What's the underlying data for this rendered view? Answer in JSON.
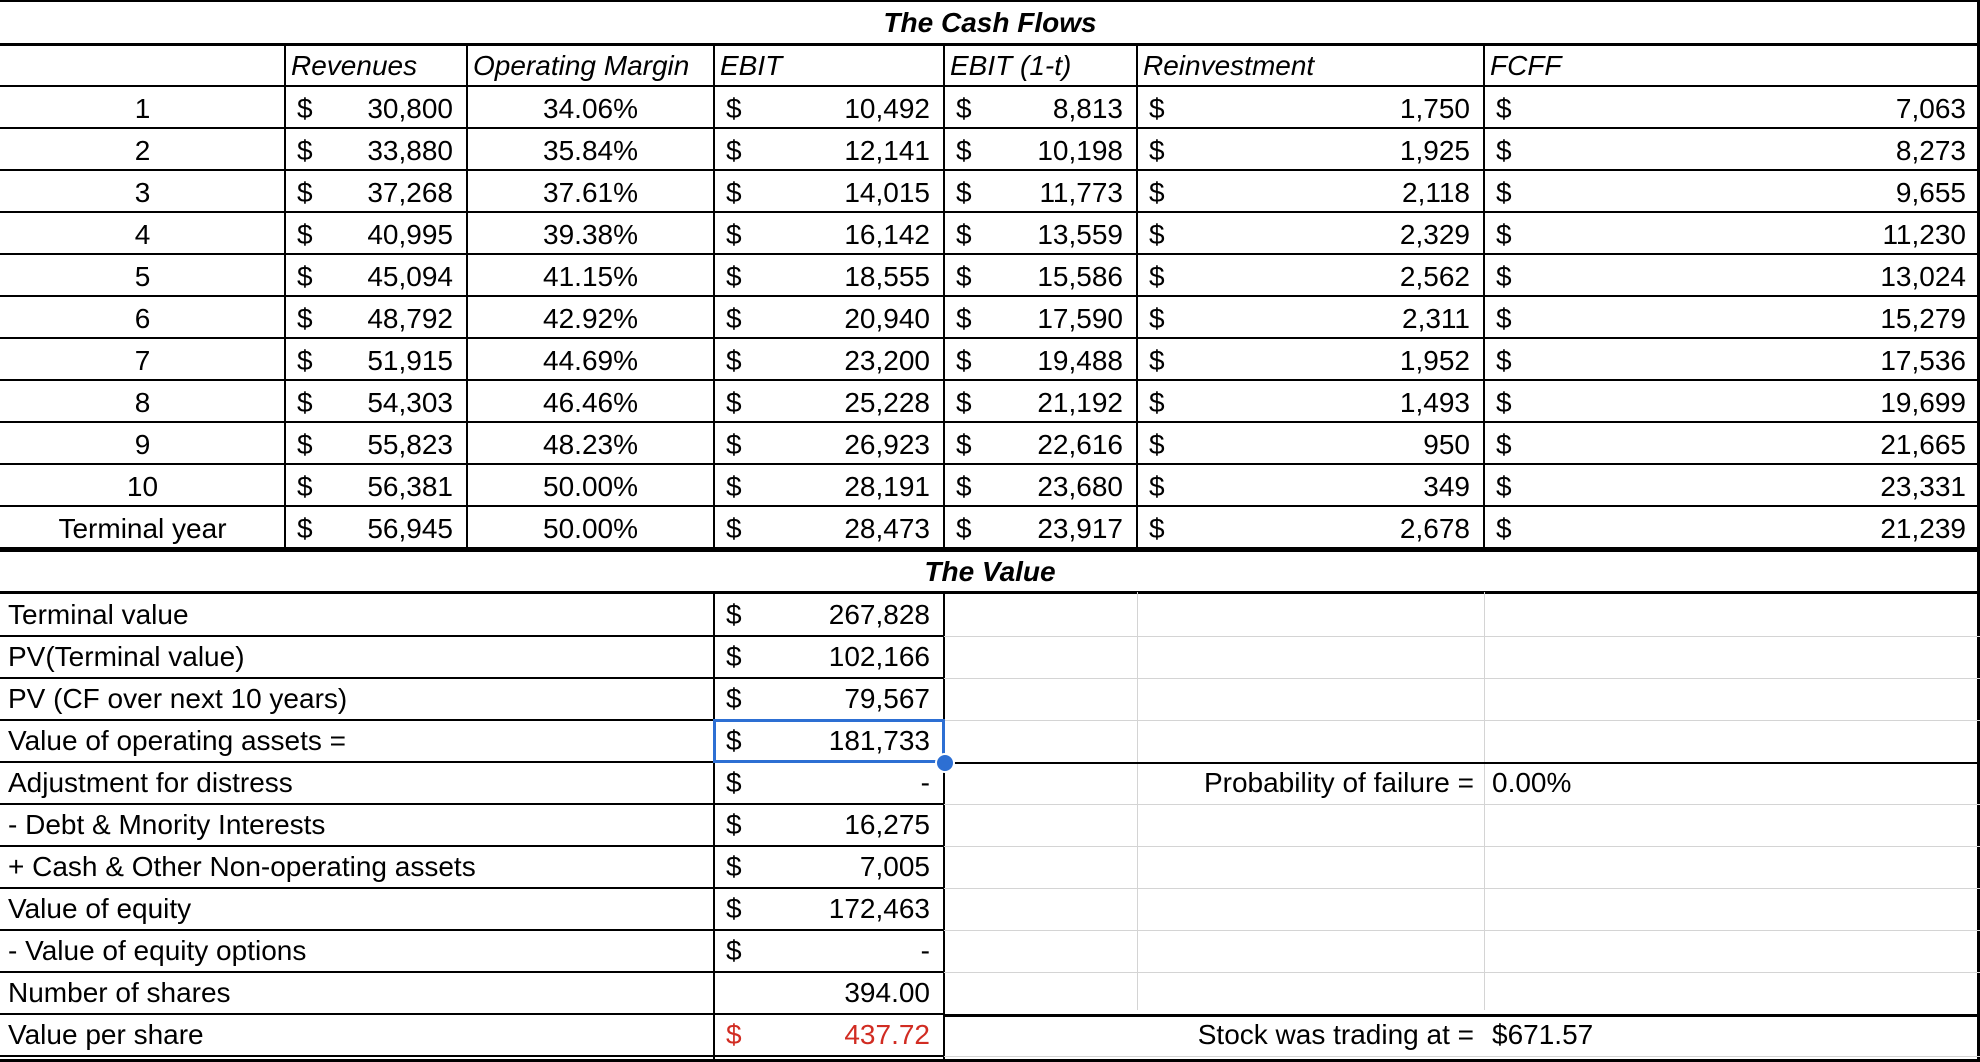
{
  "sections": {
    "cash_flows_title": "The Cash Flows",
    "value_title": "The Value"
  },
  "cash_flows": {
    "headers": [
      "Revenues",
      "Operating Margin",
      "EBIT",
      "EBIT (1-t)",
      "Reinvestment",
      "FCFF"
    ],
    "currency_symbol": "$",
    "rows": [
      {
        "year": "1",
        "revenues": "30,800",
        "margin": "34.06%",
        "ebit": "10,492",
        "ebit_after_tax": "8,813",
        "reinvestment": "1,750",
        "fcff": "7,063"
      },
      {
        "year": "2",
        "revenues": "33,880",
        "margin": "35.84%",
        "ebit": "12,141",
        "ebit_after_tax": "10,198",
        "reinvestment": "1,925",
        "fcff": "8,273"
      },
      {
        "year": "3",
        "revenues": "37,268",
        "margin": "37.61%",
        "ebit": "14,015",
        "ebit_after_tax": "11,773",
        "reinvestment": "2,118",
        "fcff": "9,655"
      },
      {
        "year": "4",
        "revenues": "40,995",
        "margin": "39.38%",
        "ebit": "16,142",
        "ebit_after_tax": "13,559",
        "reinvestment": "2,329",
        "fcff": "11,230"
      },
      {
        "year": "5",
        "revenues": "45,094",
        "margin": "41.15%",
        "ebit": "18,555",
        "ebit_after_tax": "15,586",
        "reinvestment": "2,562",
        "fcff": "13,024"
      },
      {
        "year": "6",
        "revenues": "48,792",
        "margin": "42.92%",
        "ebit": "20,940",
        "ebit_after_tax": "17,590",
        "reinvestment": "2,311",
        "fcff": "15,279"
      },
      {
        "year": "7",
        "revenues": "51,915",
        "margin": "44.69%",
        "ebit": "23,200",
        "ebit_after_tax": "19,488",
        "reinvestment": "1,952",
        "fcff": "17,536"
      },
      {
        "year": "8",
        "revenues": "54,303",
        "margin": "46.46%",
        "ebit": "25,228",
        "ebit_after_tax": "21,192",
        "reinvestment": "1,493",
        "fcff": "19,699"
      },
      {
        "year": "9",
        "revenues": "55,823",
        "margin": "48.23%",
        "ebit": "26,923",
        "ebit_after_tax": "22,616",
        "reinvestment": "950",
        "fcff": "21,665"
      },
      {
        "year": "10",
        "revenues": "56,381",
        "margin": "50.00%",
        "ebit": "28,191",
        "ebit_after_tax": "23,680",
        "reinvestment": "349",
        "fcff": "23,331"
      },
      {
        "year": "Terminal year",
        "revenues": "56,945",
        "margin": "50.00%",
        "ebit": "28,473",
        "ebit_after_tax": "23,917",
        "reinvestment": "2,678",
        "fcff": "21,239"
      }
    ]
  },
  "value": {
    "rows": [
      {
        "label": "Terminal value",
        "symbol": "$",
        "value": "267,828"
      },
      {
        "label": "PV(Terminal value)",
        "symbol": "$",
        "value": "102,166"
      },
      {
        "label": "PV (CF over next 10 years)",
        "symbol": "$",
        "value": "79,567"
      },
      {
        "label": "Value of operating assets =",
        "symbol": "$",
        "value": "181,733"
      },
      {
        "label": "Adjustment for distress",
        "symbol": "$",
        "value": "-"
      },
      {
        "label": " - Debt & Mnority Interests",
        "symbol": "$",
        "value": "16,275"
      },
      {
        "label": " + Cash & Other Non-operating assets",
        "symbol": "$",
        "value": "7,005"
      },
      {
        "label": "Value of equity",
        "symbol": "$",
        "value": "172,463"
      },
      {
        "label": " - Value of equity options",
        "symbol": "$",
        "value": "-"
      },
      {
        "label": "Number of shares",
        "symbol": "",
        "value": "394.00"
      },
      {
        "label": "Value per share",
        "symbol": "$",
        "value": "437.72"
      }
    ],
    "probability_label": "Probability of failure =",
    "probability_value": "0.00%",
    "trading_label": "Stock was trading at =",
    "trading_value": "$671.57"
  },
  "colors": {
    "selection": "#2d6fd3",
    "value_per_share": "#d12c22"
  }
}
